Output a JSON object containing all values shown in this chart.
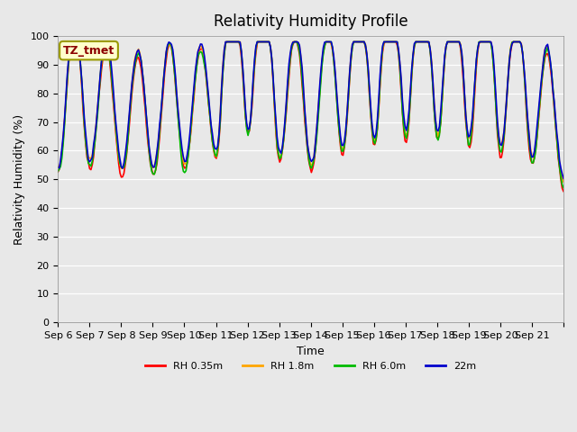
{
  "title": "Relativity Humidity Profile",
  "xlabel": "Time",
  "ylabel": "Relativity Humidity (%)",
  "ylim": [
    0,
    100
  ],
  "annotation": "TZ_tmet",
  "annotation_color": "#8B0000",
  "annotation_bg": "#FFFFCC",
  "annotation_edge": "#999900",
  "bg_color": "#E8E8E8",
  "grid_color": "white",
  "line_colors": [
    "#FF0000",
    "#FFA500",
    "#00BB00",
    "#0000CC"
  ],
  "line_labels": [
    "RH 0.35m",
    "RH 1.8m",
    "RH 6.0m",
    "22m"
  ],
  "line_width": 1.2,
  "x_tick_labels": [
    "Sep 6",
    "Sep 7",
    "Sep 8",
    "Sep 9",
    "Sep 10",
    "Sep 11",
    "Sep 12",
    "Sep 13",
    "Sep 14",
    "Sep 15",
    "Sep 16",
    "Sep 17",
    "Sep 18",
    "Sep 19",
    "Sep 20",
    "Sep 21",
    ""
  ],
  "n_days": 16,
  "pts_per_day": 24
}
